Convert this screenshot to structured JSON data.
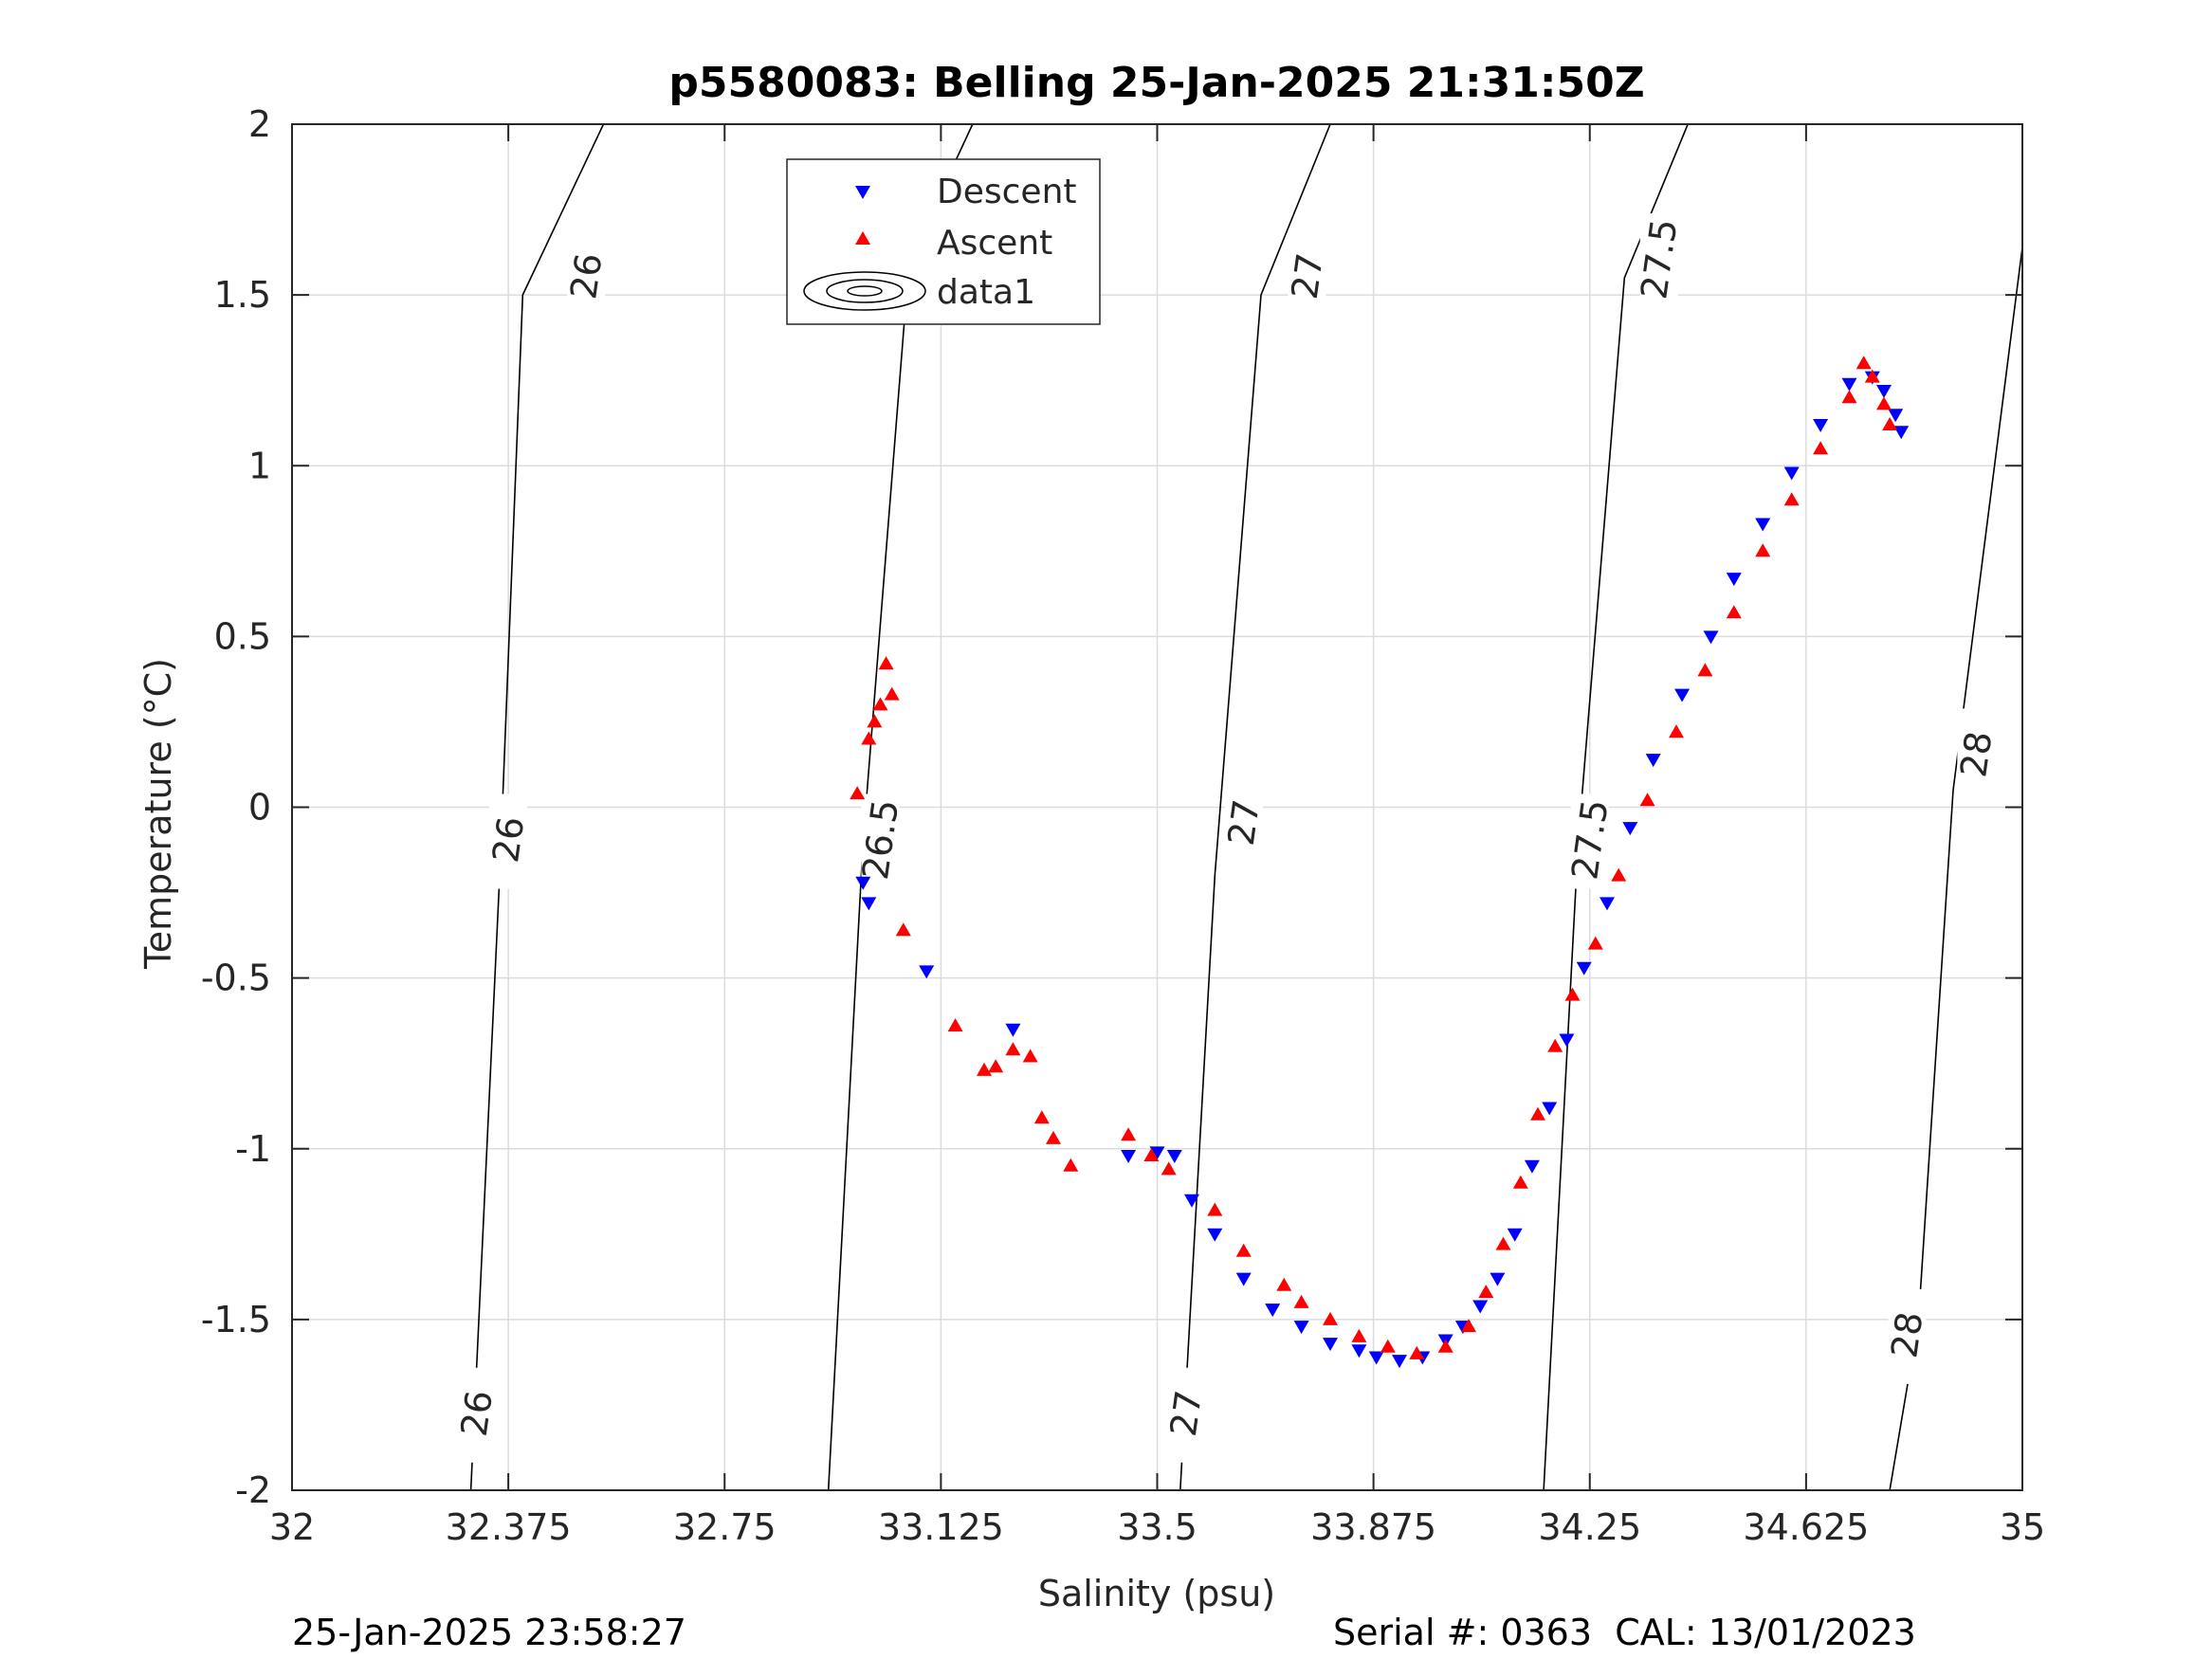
{
  "footer": {
    "timestamp": "25-Jan-2025 23:58:27",
    "serial": "Serial #: 0363  CAL: 13/01/2023"
  },
  "colors": {
    "descent": "#0000ff",
    "ascent": "#ff0000",
    "contour": "#000000",
    "grid": "#dcdcdc"
  },
  "chart_data": {
    "type": "scatter",
    "title": "p5580083: Belling 25-Jan-2025 21:31:50Z",
    "xlabel": "Salinity (psu)",
    "ylabel": "Temperature (°C)",
    "xlim": [
      32,
      35
    ],
    "ylim": [
      -2,
      2
    ],
    "xticks": [
      32,
      32.375,
      32.75,
      33.125,
      33.5,
      33.875,
      34.25,
      34.625,
      35
    ],
    "xtick_labels": [
      "32",
      "32.375",
      "32.75",
      "33.125",
      "33.5",
      "33.875",
      "34.25",
      "34.625",
      "35"
    ],
    "yticks": [
      2,
      1.5,
      1,
      0.5,
      0,
      -0.5,
      -1,
      -1.5,
      -2
    ],
    "ytick_labels": [
      "2",
      "1.5",
      "1",
      "0.5",
      "0",
      "-0.5",
      "-1",
      "-1.5",
      "-2"
    ],
    "grid": true,
    "legend": {
      "placement": "top-center",
      "entries": [
        "Descent",
        "Ascent",
        "data1"
      ]
    },
    "contours": [
      {
        "level": "26",
        "points": [
          [
            32.31,
            -2
          ],
          [
            32.36,
            -0.2
          ],
          [
            32.4,
            1.5
          ],
          [
            32.54,
            2
          ]
        ],
        "labels": [
          [
            32.32,
            -1.78
          ],
          [
            32.375,
            -0.1
          ],
          [
            32.51,
            1.55
          ]
        ]
      },
      {
        "level": "26.5",
        "points": [
          [
            32.93,
            -2
          ],
          [
            32.99,
            -0.1
          ],
          [
            33.07,
            1.6
          ],
          [
            33.18,
            2
          ]
        ],
        "labels": [
          [
            33.02,
            -0.1
          ],
          [
            33.14,
            1.55
          ]
        ]
      },
      {
        "level": "27",
        "points": [
          [
            33.54,
            -2
          ],
          [
            33.6,
            -0.2
          ],
          [
            33.68,
            1.5
          ],
          [
            33.8,
            2
          ]
        ],
        "labels": [
          [
            33.55,
            -1.78
          ],
          [
            33.65,
            -0.05
          ],
          [
            33.76,
            1.55
          ]
        ]
      },
      {
        "level": "27.5",
        "points": [
          [
            34.17,
            -2
          ],
          [
            34.23,
            -0.1
          ],
          [
            34.31,
            1.55
          ],
          [
            34.42,
            2
          ]
        ],
        "labels": [
          [
            34.25,
            -0.1
          ],
          [
            34.37,
            1.6
          ]
        ]
      },
      {
        "level": "28",
        "points": [
          [
            34.77,
            -2
          ],
          [
            34.82,
            -1.5
          ],
          [
            34.88,
            0.05
          ],
          [
            35.0,
            1.64
          ]
        ],
        "labels": [
          [
            34.8,
            -1.55
          ],
          [
            34.92,
            0.15
          ]
        ]
      }
    ],
    "series": [
      {
        "name": "Descent",
        "marker": "down-triangle",
        "x": [
          32.99,
          33.0,
          33.1,
          33.25,
          33.45,
          33.5,
          33.53,
          33.56,
          33.6,
          33.65,
          33.7,
          33.75,
          33.8,
          33.85,
          33.88,
          33.92,
          33.96,
          34.0,
          34.03,
          34.06,
          34.09,
          34.12,
          34.15,
          34.18,
          34.21,
          34.24,
          34.28,
          34.32,
          34.36,
          34.41,
          34.46,
          34.5,
          34.55,
          34.6,
          34.65,
          34.7,
          34.74,
          34.76,
          34.78,
          34.79
        ],
        "y": [
          -0.22,
          -0.28,
          -0.48,
          -0.65,
          -1.02,
          -1.01,
          -1.02,
          -1.15,
          -1.25,
          -1.38,
          -1.47,
          -1.52,
          -1.57,
          -1.59,
          -1.61,
          -1.62,
          -1.61,
          -1.56,
          -1.52,
          -1.46,
          -1.38,
          -1.25,
          -1.05,
          -0.88,
          -0.68,
          -0.47,
          -0.28,
          -0.06,
          0.14,
          0.33,
          0.5,
          0.67,
          0.83,
          0.98,
          1.12,
          1.24,
          1.26,
          1.22,
          1.15,
          1.1
        ]
      },
      {
        "name": "Ascent",
        "marker": "up-triangle",
        "x": [
          32.98,
          33.0,
          33.01,
          33.02,
          33.03,
          33.04,
          33.06,
          33.15,
          33.2,
          33.22,
          33.25,
          33.28,
          33.3,
          33.32,
          33.35,
          33.45,
          33.49,
          33.52,
          33.6,
          33.65,
          33.72,
          33.75,
          33.8,
          33.85,
          33.9,
          33.95,
          34.0,
          34.04,
          34.07,
          34.1,
          34.13,
          34.16,
          34.19,
          34.22,
          34.26,
          34.3,
          34.35,
          34.4,
          34.45,
          34.5,
          34.55,
          34.6,
          34.65,
          34.7,
          34.725,
          34.74,
          34.76,
          34.77
        ],
        "y": [
          0.04,
          0.2,
          0.25,
          0.3,
          0.42,
          0.33,
          -0.36,
          -0.64,
          -0.77,
          -0.76,
          -0.71,
          -0.73,
          -0.91,
          -0.97,
          -1.05,
          -0.96,
          -1.02,
          -1.06,
          -1.18,
          -1.3,
          -1.4,
          -1.45,
          -1.5,
          -1.55,
          -1.58,
          -1.6,
          -1.58,
          -1.52,
          -1.42,
          -1.28,
          -1.1,
          -0.9,
          -0.7,
          -0.55,
          -0.4,
          -0.2,
          0.02,
          0.22,
          0.4,
          0.57,
          0.75,
          0.9,
          1.05,
          1.2,
          1.3,
          1.26,
          1.18,
          1.12
        ]
      }
    ]
  }
}
